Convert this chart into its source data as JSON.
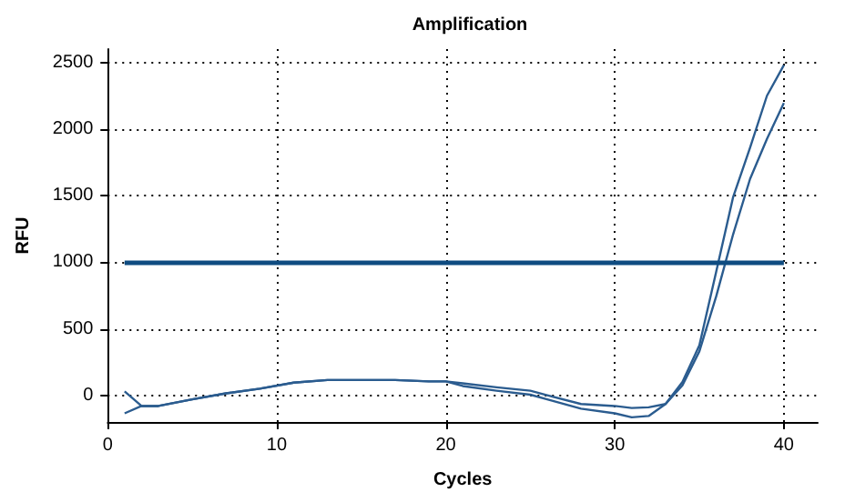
{
  "chart_data": {
    "type": "line",
    "title": "Amplification",
    "xlabel": "Cycles",
    "ylabel": "RFU",
    "x": [
      1,
      2,
      3,
      5,
      7,
      9,
      11,
      13,
      15,
      17,
      19,
      20,
      21,
      23,
      25,
      26,
      28,
      30,
      31,
      32,
      33,
      34,
      35,
      36,
      37,
      38,
      39,
      40
    ],
    "series": [
      {
        "color": "#2b5c8f",
        "values": [
          30,
          -80,
          -80,
          -30,
          15,
          50,
          95,
          115,
          115,
          115,
          105,
          105,
          90,
          60,
          35,
          0,
          -65,
          -80,
          -95,
          -90,
          -65,
          100,
          375,
          930,
          1490,
          1860,
          2250,
          2480
        ]
      },
      {
        "color": "#2b5c8f",
        "values": [
          -135,
          -80,
          -80,
          -30,
          15,
          50,
          95,
          115,
          115,
          115,
          105,
          105,
          70,
          35,
          5,
          -30,
          -100,
          -135,
          -165,
          -155,
          -65,
          75,
          330,
          745,
          1210,
          1625,
          1925,
          2195
        ]
      }
    ],
    "xlim": [
      0,
      42
    ],
    "xticks": [
      0,
      10,
      20,
      30,
      40
    ],
    "ylim": [
      -200,
      2600
    ],
    "yticks": [
      0,
      500,
      1000,
      1500,
      2000,
      2500
    ],
    "ref_lines": [
      {
        "axis": "y",
        "value": 1000,
        "color": "#0f4c81"
      }
    ],
    "grid": true,
    "marker": "none",
    "line_style": "solid"
  }
}
